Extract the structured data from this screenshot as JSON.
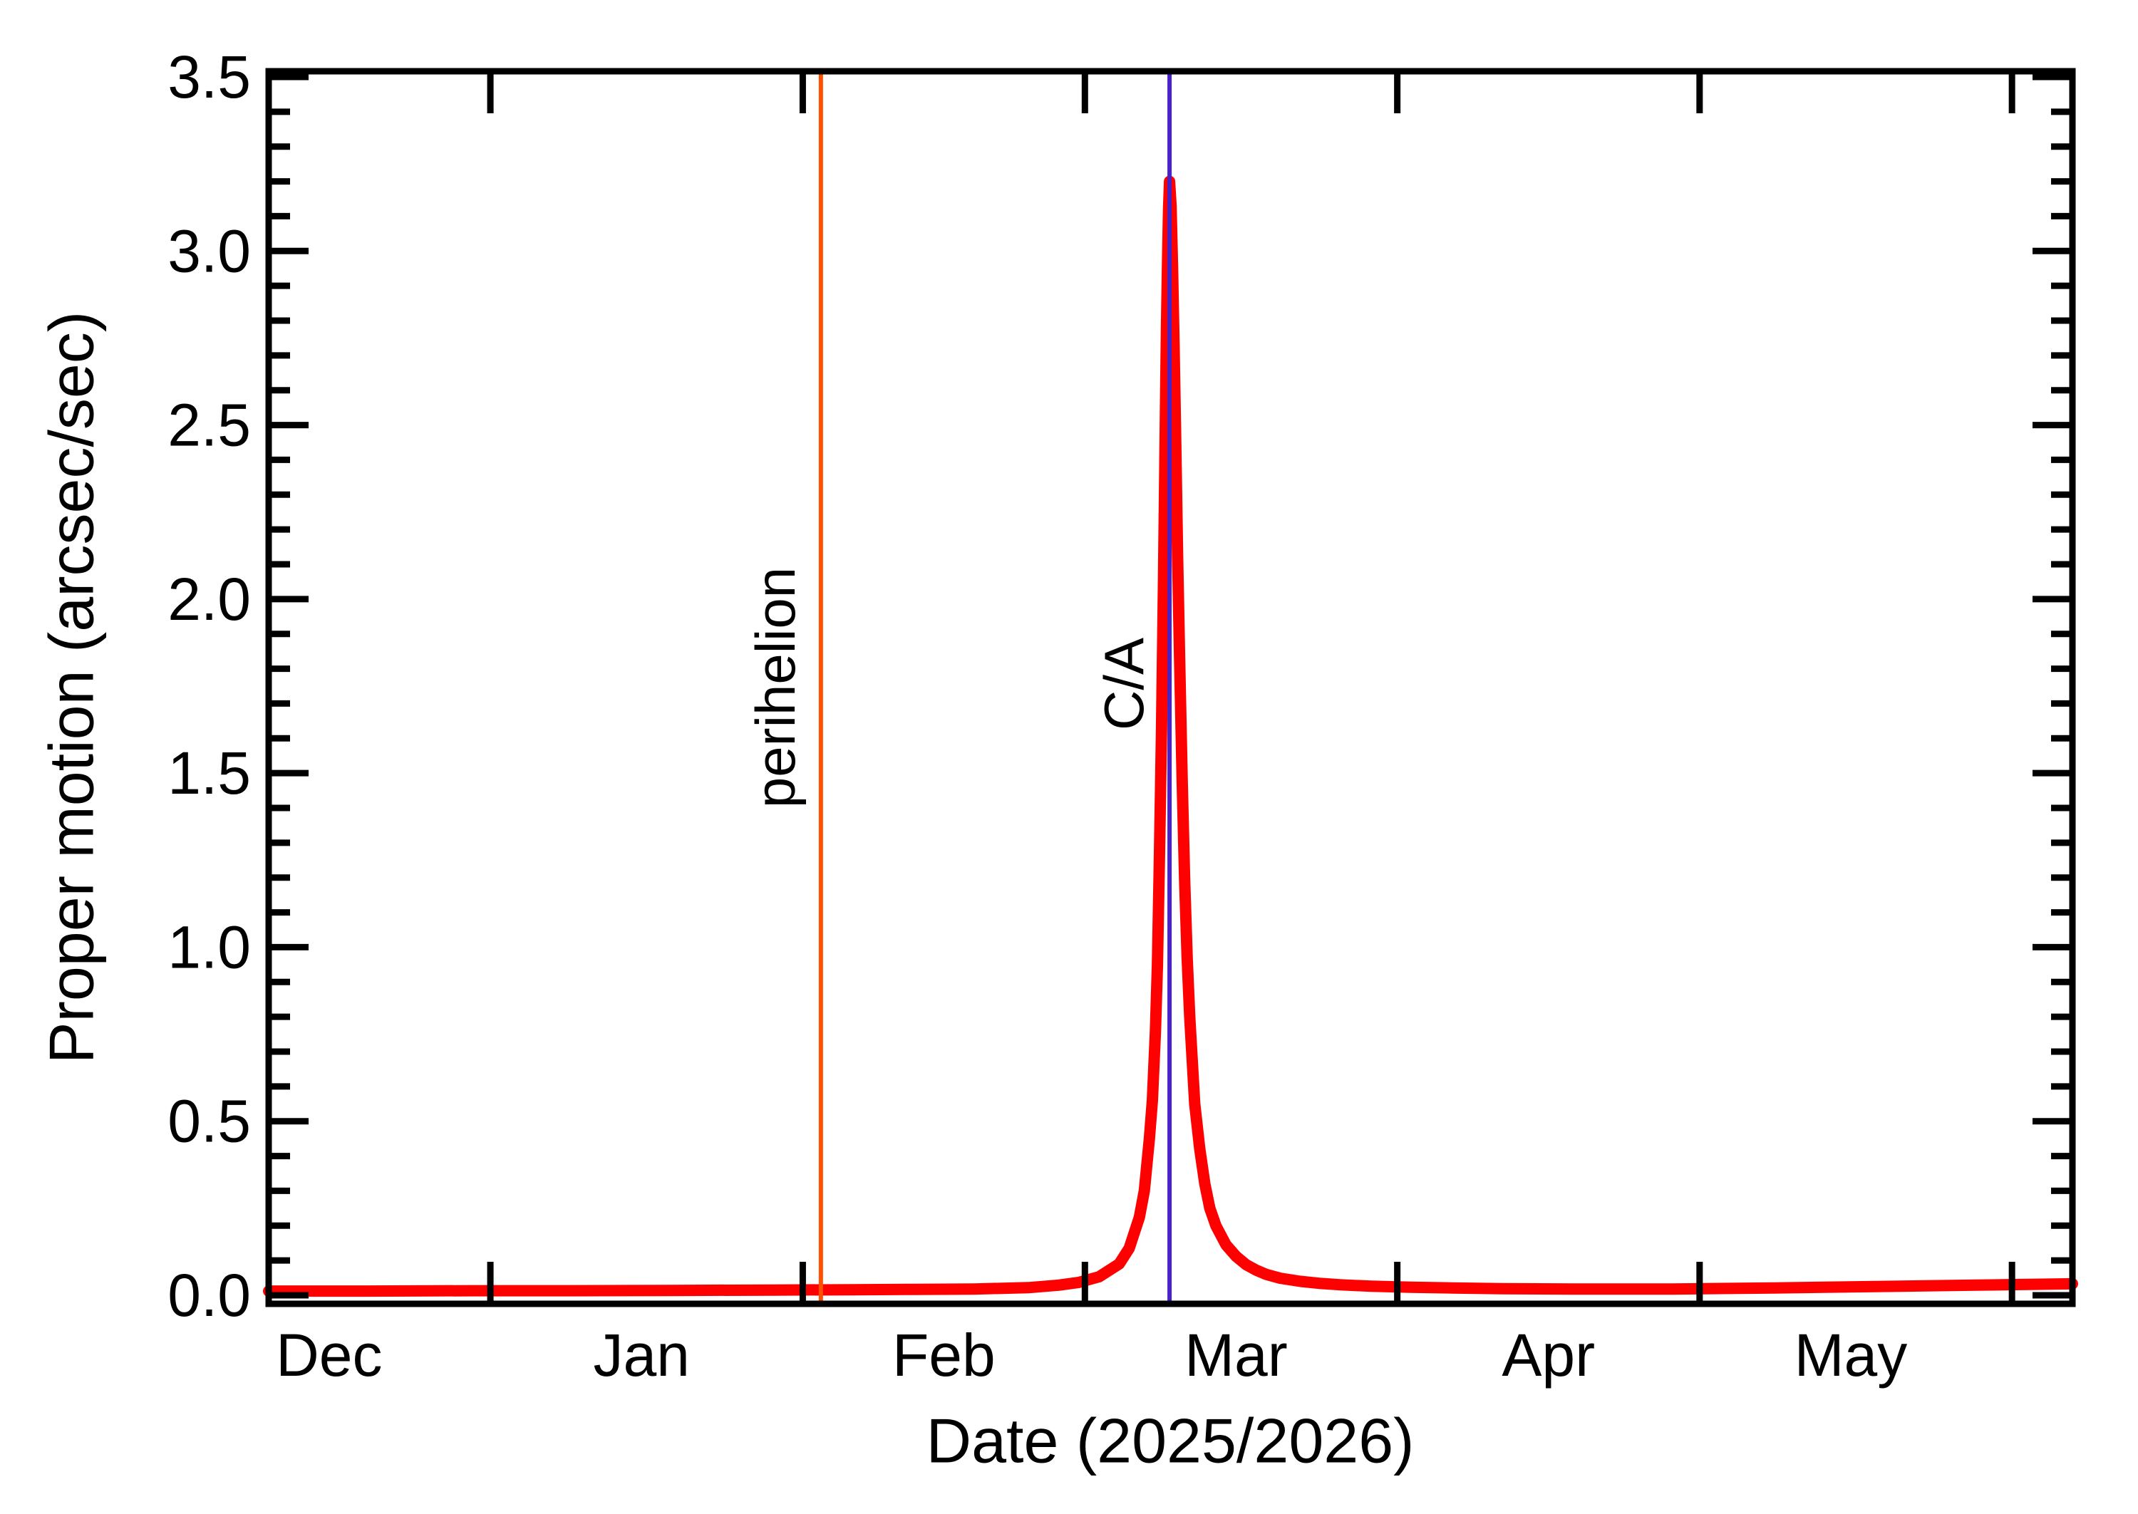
{
  "chart_data": {
    "type": "line",
    "title": "",
    "xlabel": "Date (2025/2026)",
    "ylabel": "Proper motion (arcsec/sec)",
    "x_axis": {
      "start_date": "2025-12-10",
      "end_date": "2026-06-07",
      "span_days": 179,
      "month_labels": [
        {
          "label": "Dec",
          "day": 6
        },
        {
          "label": "Jan",
          "day": 37
        },
        {
          "label": "Feb",
          "day": 67
        },
        {
          "label": "Mar",
          "day": 96
        },
        {
          "label": "Apr",
          "day": 127
        },
        {
          "label": "May",
          "day": 157
        }
      ],
      "month_boundary_tick_days": [
        22,
        53,
        81,
        112,
        142,
        173
      ]
    },
    "y_axis": {
      "min": -0.11,
      "max": 3.52,
      "major_ticks": [
        0.0,
        0.5,
        1.0,
        1.5,
        2.0,
        2.5,
        3.0,
        3.5
      ],
      "major_tick_labels": [
        "0.0",
        "0.5",
        "1.0",
        "1.5",
        "2.0",
        "2.5",
        "3.0",
        "3.5"
      ],
      "minor_tick_step": 0.1
    },
    "annotations": [
      {
        "label": "perihelion",
        "day": 54.8,
        "approx_date": "2026-02-03",
        "color": "#ff4f00"
      },
      {
        "label": "C/A",
        "day": 89.4,
        "approx_date": "2026-03-09",
        "color": "#4822c2"
      }
    ],
    "peak": {
      "value_arcsec_per_sec": 3.2,
      "day": 89.4,
      "approx_date": "2026-03-09"
    },
    "series": [
      {
        "name": "proper-motion",
        "color": "#ff0000",
        "points": [
          [
            0,
            0.012
          ],
          [
            10,
            0.012
          ],
          [
            20,
            0.013
          ],
          [
            30,
            0.013
          ],
          [
            40,
            0.014
          ],
          [
            50,
            0.015
          ],
          [
            58,
            0.016
          ],
          [
            64,
            0.017
          ],
          [
            70,
            0.018
          ],
          [
            75.4,
            0.022
          ],
          [
            78.4,
            0.029
          ],
          [
            80.4,
            0.037
          ],
          [
            82.4,
            0.053
          ],
          [
            84.4,
            0.09
          ],
          [
            85.4,
            0.135
          ],
          [
            86.4,
            0.224
          ],
          [
            86.9,
            0.3
          ],
          [
            87.4,
            0.45
          ],
          [
            87.7,
            0.56
          ],
          [
            88.0,
            0.76
          ],
          [
            88.2,
            0.95
          ],
          [
            88.4,
            1.26
          ],
          [
            88.6,
            1.62
          ],
          [
            88.8,
            2.05
          ],
          [
            88.9,
            2.3
          ],
          [
            89.0,
            2.55
          ],
          [
            89.1,
            2.78
          ],
          [
            89.2,
            2.97
          ],
          [
            89.3,
            3.12
          ],
          [
            89.4,
            3.2
          ],
          [
            89.55,
            3.13
          ],
          [
            89.7,
            2.95
          ],
          [
            89.85,
            2.73
          ],
          [
            90.0,
            2.47
          ],
          [
            90.2,
            2.12
          ],
          [
            90.4,
            1.83
          ],
          [
            90.65,
            1.48
          ],
          [
            90.9,
            1.19
          ],
          [
            91.15,
            0.97
          ],
          [
            91.4,
            0.8
          ],
          [
            91.9,
            0.55
          ],
          [
            92.4,
            0.42
          ],
          [
            92.9,
            0.32
          ],
          [
            93.4,
            0.25
          ],
          [
            94,
            0.2
          ],
          [
            95,
            0.145
          ],
          [
            96,
            0.112
          ],
          [
            97,
            0.088
          ],
          [
            98,
            0.072
          ],
          [
            99,
            0.06
          ],
          [
            100.4,
            0.049
          ],
          [
            102.4,
            0.04
          ],
          [
            104.4,
            0.034
          ],
          [
            106.4,
            0.03
          ],
          [
            109.4,
            0.026
          ],
          [
            113.4,
            0.023
          ],
          [
            117.4,
            0.021
          ],
          [
            122.4,
            0.019
          ],
          [
            129.4,
            0.018
          ],
          [
            139.4,
            0.018
          ],
          [
            149.4,
            0.021
          ],
          [
            159.4,
            0.025
          ],
          [
            169.4,
            0.029
          ],
          [
            179,
            0.033
          ]
        ]
      }
    ],
    "frame_color": "#000000",
    "background": "#ffffff"
  }
}
